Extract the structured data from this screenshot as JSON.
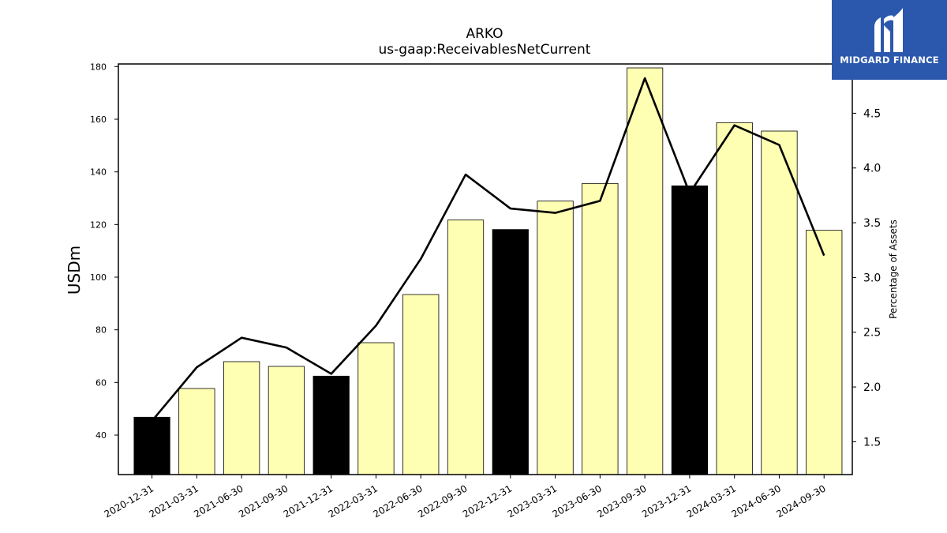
{
  "chart_data": {
    "type": "bar",
    "title": "ARKO",
    "subtitle": "us-gaap:ReceivablesNetCurrent",
    "ylabel": "USDm",
    "y2label": "Percentage of Assets",
    "ylim": [
      25,
      181
    ],
    "y2lim": [
      1.2,
      4.95
    ],
    "yticks": [
      40,
      60,
      80,
      100,
      120,
      140,
      160,
      180
    ],
    "y2ticks": [
      1.5,
      2.0,
      2.5,
      3.0,
      3.5,
      4.0,
      4.5
    ],
    "categories": [
      "2020-12-31",
      "2021-03-31",
      "2021-06-30",
      "2021-09-30",
      "2021-12-31",
      "2022-03-31",
      "2022-06-30",
      "2022-09-30",
      "2022-12-31",
      "2023-03-31",
      "2023-06-30",
      "2023-09-30",
      "2023-12-31",
      "2024-03-31",
      "2024-06-30",
      "2024-09-30"
    ],
    "series": [
      {
        "values": [
          46.8,
          57.7,
          67.9,
          66.1,
          62.4,
          75.1,
          93.4,
          121.7,
          118.1,
          128.9,
          135.6,
          179.5,
          134.7,
          158.7,
          155.5,
          117.8
        ],
        "colors": [
          "#000000",
          "#ffffb3",
          "#ffffb3",
          "#ffffb3",
          "#000000",
          "#ffffb3",
          "#ffffb3",
          "#ffffb3",
          "#000000",
          "#ffffb3",
          "#ffffb3",
          "#ffffb3",
          "#000000",
          "#ffffb3",
          "#ffffb3",
          "#ffffb3"
        ],
        "axis": "left"
      },
      {
        "type": "line",
        "values": [
          1.69,
          2.18,
          2.45,
          2.36,
          2.12,
          2.56,
          3.17,
          3.94,
          3.63,
          3.59,
          3.7,
          4.82,
          3.77,
          4.39,
          4.21,
          3.2
        ],
        "color": "#000000",
        "axis": "right"
      }
    ],
    "grid": false,
    "legend": "none"
  },
  "logo": {
    "text": "MIDGARD FINANCE",
    "color": "#2b58ad"
  }
}
